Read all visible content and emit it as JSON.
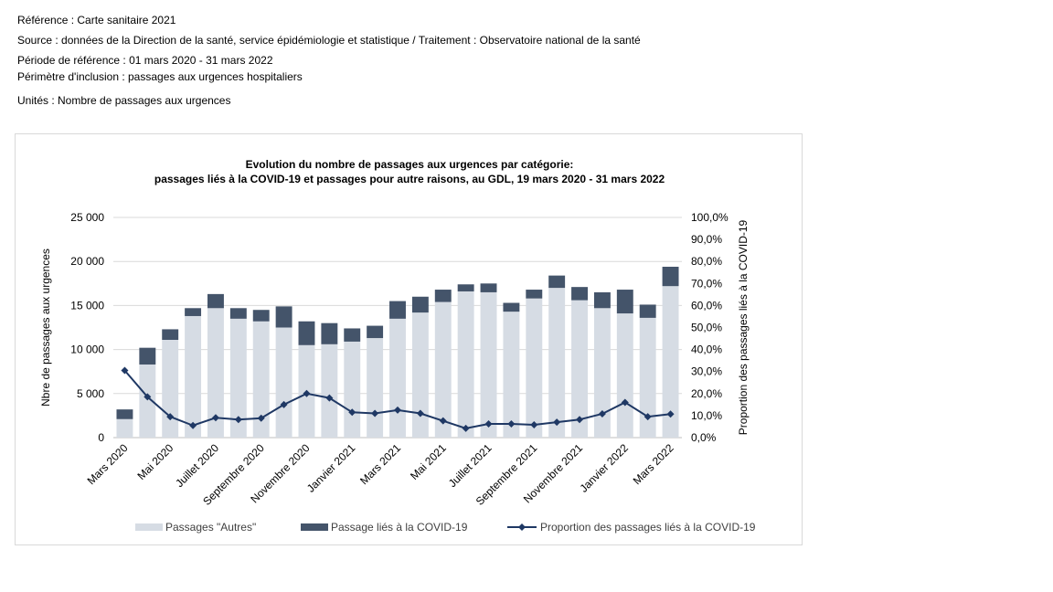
{
  "meta": {
    "reference": "Référence : Carte sanitaire 2021",
    "source": "Source : données de la Direction de la santé, service épidémiologie et statistique / Traitement : Observatoire national de la santé",
    "period": "Période de référence : 01 mars 2020 - 31 mars 2022",
    "scope": "Périmètre d'inclusion : passages aux urgences hospitaliers",
    "units": "Unités : Nombre de passages aux urgences"
  },
  "colors": {
    "autres": "#d6dce4",
    "covid": "#44546a",
    "line": "#1f3864",
    "grid": "#d9d9d9"
  },
  "chart_data": {
    "type": "bar",
    "stacked": true,
    "title_line1": "Evolution du nombre de passages aux urgences par catégorie:",
    "title_line2": "passages liés à la COVID-19 et passages  pour autre raisons, au GDL,  19 mars 2020 - 31 mars 2022",
    "ylabel": "Nbre de  passages aux urgences",
    "y2label": "Proportion des passages liés à la COVID-19",
    "ylim": [
      0,
      25000
    ],
    "y2lim": [
      0,
      100
    ],
    "yticks": [
      "0",
      "5 000",
      "10 000",
      "15 000",
      "20 000",
      "25 000"
    ],
    "y2ticks": [
      "0,0%",
      "10,0%",
      "20,0%",
      "30,0%",
      "40,0%",
      "50,0%",
      "60,0%",
      "70,0%",
      "80,0%",
      "90,0%",
      "100,0%"
    ],
    "grid": true,
    "legend_position": "bottom",
    "x_tick_labels": [
      {
        "index": 0,
        "label": "Mars 2020"
      },
      {
        "index": 2,
        "label": "Mai 2020"
      },
      {
        "index": 4,
        "label": "Juillet 2020"
      },
      {
        "index": 6,
        "label": "Septembre 2020"
      },
      {
        "index": 8,
        "label": "Novembre 2020"
      },
      {
        "index": 10,
        "label": "Janvier 2021"
      },
      {
        "index": 12,
        "label": "Mars 2021"
      },
      {
        "index": 14,
        "label": "Mai 2021"
      },
      {
        "index": 16,
        "label": "Juillet 2021"
      },
      {
        "index": 18,
        "label": "Septembre 2021"
      },
      {
        "index": 20,
        "label": "Novembre 2021"
      },
      {
        "index": 22,
        "label": "Janvier 2022"
      },
      {
        "index": 24,
        "label": "Mars 2022"
      }
    ],
    "series": [
      {
        "name": "Passages \"Autres\"",
        "kind": "bar",
        "values": [
          2100,
          8300,
          11100,
          13800,
          14700,
          13500,
          13200,
          12500,
          10500,
          10600,
          10900,
          11300,
          13500,
          14200,
          15400,
          16600,
          16500,
          14300,
          15800,
          17000,
          15600,
          14700,
          14100,
          13600,
          17200
        ]
      },
      {
        "name": "Passage liés à la COVID-19",
        "kind": "bar",
        "values": [
          1100,
          1900,
          1200,
          900,
          1600,
          1200,
          1300,
          2400,
          2700,
          2400,
          1500,
          1400,
          2000,
          1800,
          1400,
          800,
          1000,
          1000,
          1000,
          1400,
          1500,
          1800,
          2700,
          1500,
          2200
        ]
      },
      {
        "name": "Proportion des passages liés à la COVID-19",
        "kind": "line",
        "axis": "right",
        "values": [
          30.5,
          18.5,
          9.5,
          5.5,
          9.0,
          8.2,
          8.8,
          15.0,
          20.0,
          18.0,
          11.5,
          11.0,
          12.5,
          11.0,
          7.6,
          4.2,
          6.2,
          6.2,
          5.8,
          7.0,
          8.2,
          10.8,
          16.0,
          9.5,
          10.7
        ]
      }
    ]
  }
}
